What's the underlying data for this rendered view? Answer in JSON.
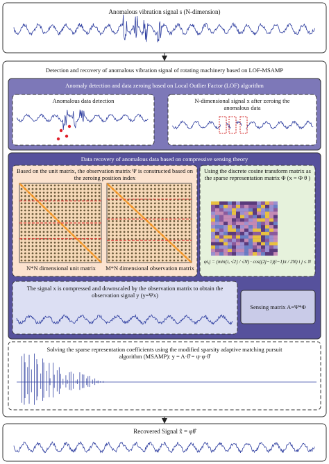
{
  "header": {
    "title": "Anomalous vibration signal s (N-dimension)"
  },
  "main": {
    "title": "Detection and recovery of anomalous vibration signal of rotating machinery based on LOF-MSAMP"
  },
  "detection": {
    "title": "Anomaly detection and data zeroing based on Local Outlier Factor (LOF) algorithm",
    "left_label": "Anomalous data detection",
    "right_label": "N-dimensional signal x after zeroing the anomalous data"
  },
  "recovery": {
    "title": "Data recovery of anomalous data based on compressive sensing theory",
    "observation": {
      "text": "Based on the unit matrix, the observation matrix Ψ is constructed based on the zeroing position index",
      "left_caption": "N*N dimensional unit matrix",
      "right_caption": "M*N dimensional observation matrix"
    },
    "dct": {
      "text": "Using the discrete cosine transform matrix as the sparse representation matrix Φ (x = Φ θ )",
      "formula": "φi,j = (min{i, √2} / √N) · cos((2j−1)(i−1)π / 2N)   i j ≤ N"
    },
    "compress": "The signal x is compressed and downscaled by the observation matrix to obtain the observation signal y (y=Ψx)",
    "sensing": "Sensing matrix A=Ψ*Φ"
  },
  "solve": {
    "text": "Solving the sparse representation coefficients using the modified sparsity adaptive matching pursuit algorithm (MSAMP): y = A·θ̂ = ψ·φ·θ̂"
  },
  "footer": {
    "title": "Recovered Signal  x̂ = φθ̂"
  }
}
